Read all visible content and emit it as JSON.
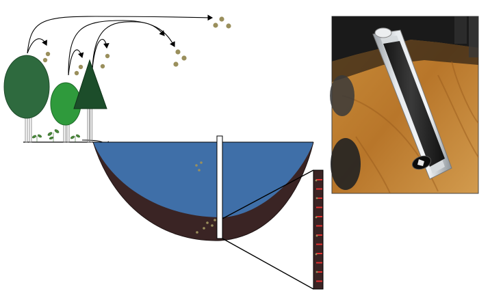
{
  "colors": {
    "water": "#3f6fa8",
    "sediment": "#3a2424",
    "tree_dark": "#2e6a3e",
    "tree_mid": "#2f9a3c",
    "tree_conifer": "#1c4d2a",
    "pollen": "#9a8f5c",
    "core_mark": "#e23030",
    "seedling": "#4a8a3a"
  },
  "icons": {
    "deciduous_tree": "tree-icon",
    "conifer_tree": "conifer-icon",
    "pollen": "pollen-grain-icon",
    "seedling": "seedling-icon",
    "core": "sediment-core-icon"
  }
}
